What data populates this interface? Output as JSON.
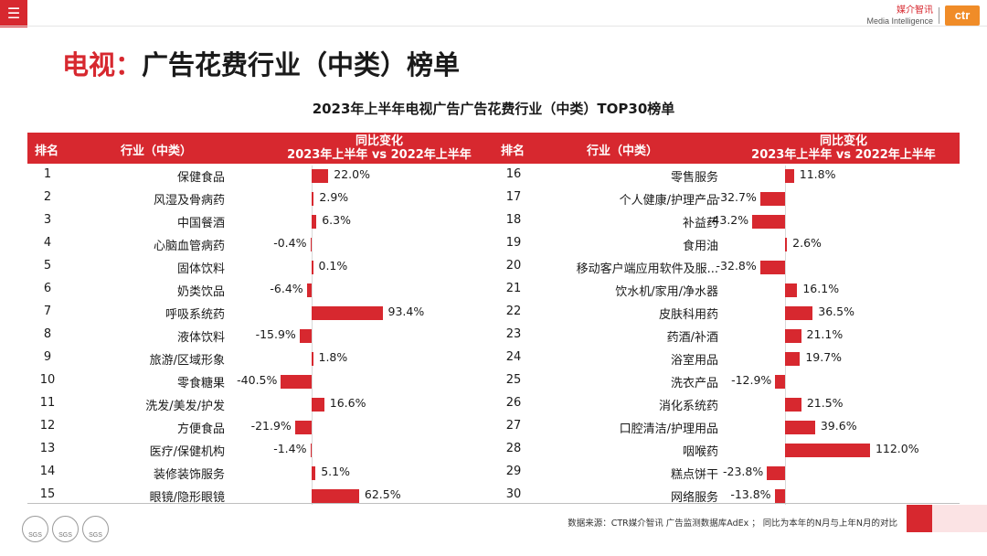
{
  "header": {
    "menu_icon": "menu-icon",
    "brand_cn": "媒介智讯",
    "brand_en": "Media Intelligence",
    "brand_logo": "ctr"
  },
  "page_title": {
    "red": "电视：",
    "black": "广告花费行业（中类）榜单"
  },
  "table_header": {
    "rank": "排名",
    "industry": "行业（中类）",
    "change_line1": "同比变化",
    "change_line2": "2023年上半年 vs 2022年上半年"
  },
  "footer": {
    "source": "数据来源：CTR媒介智讯 广告监测数据库AdEx ；  同比为本年的N月与上年N月的对比",
    "cert_labels": [
      "SGS",
      "SGS",
      "SGS"
    ]
  },
  "colors": {
    "accent": "#d7282f",
    "brand_orange": "#f08c28"
  },
  "chart_data": {
    "type": "bar",
    "title": "2023年上半年电视广告广告花费行业（中类）TOP30榜单",
    "xlabel": "同比变化 2023年上半年 vs 2022年上半年",
    "ranks": [
      1,
      2,
      3,
      4,
      5,
      6,
      7,
      8,
      9,
      10,
      11,
      12,
      13,
      14,
      15,
      16,
      17,
      18,
      19,
      20,
      21,
      22,
      23,
      24,
      25,
      26,
      27,
      28,
      29,
      30
    ],
    "categories": [
      "保健食品",
      "风湿及骨病药",
      "中国餐酒",
      "心脑血管病药",
      "固体饮料",
      "奶类饮品",
      "呼吸系统药",
      "液体饮料",
      "旅游/区域形象",
      "零食糖果",
      "洗发/美发/护发",
      "方便食品",
      "医疗/保健机构",
      "装修装饰服务",
      "眼镜/隐形眼镜",
      "零售服务",
      "个人健康/护理产品",
      "补益药",
      "食用油",
      "移动客户端应用软件及服...",
      "饮水机/家用/净水器",
      "皮肤科用药",
      "药酒/补酒",
      "浴室用品",
      "洗衣产品",
      "消化系统药",
      "口腔清洁/护理用品",
      "咽喉药",
      "糕点饼干",
      "网络服务"
    ],
    "values": [
      22.0,
      2.9,
      6.3,
      -0.4,
      0.1,
      -6.4,
      93.4,
      -15.9,
      1.8,
      -40.5,
      16.6,
      -21.9,
      -1.4,
      5.1,
      62.5,
      11.8,
      -32.7,
      -43.2,
      2.6,
      -32.8,
      16.1,
      36.5,
      21.1,
      19.7,
      -12.9,
      21.5,
      39.6,
      112.0,
      -23.8,
      -13.8
    ],
    "value_labels": [
      "22.0%",
      "2.9%",
      "6.3%",
      "-0.4%",
      "0.1%",
      "-6.4%",
      "93.4%",
      "-15.9%",
      "1.8%",
      "-40.5%",
      "16.6%",
      "-21.9%",
      "-1.4%",
      "5.1%",
      "62.5%",
      "11.8%",
      "-32.7%",
      "-43.2%",
      "2.6%",
      "-32.8%",
      "16.1%",
      "36.5%",
      "21.1%",
      "19.7%",
      "-12.9%",
      "21.5%",
      "39.6%",
      "112.0%",
      "-23.8%",
      "-13.8%"
    ]
  }
}
